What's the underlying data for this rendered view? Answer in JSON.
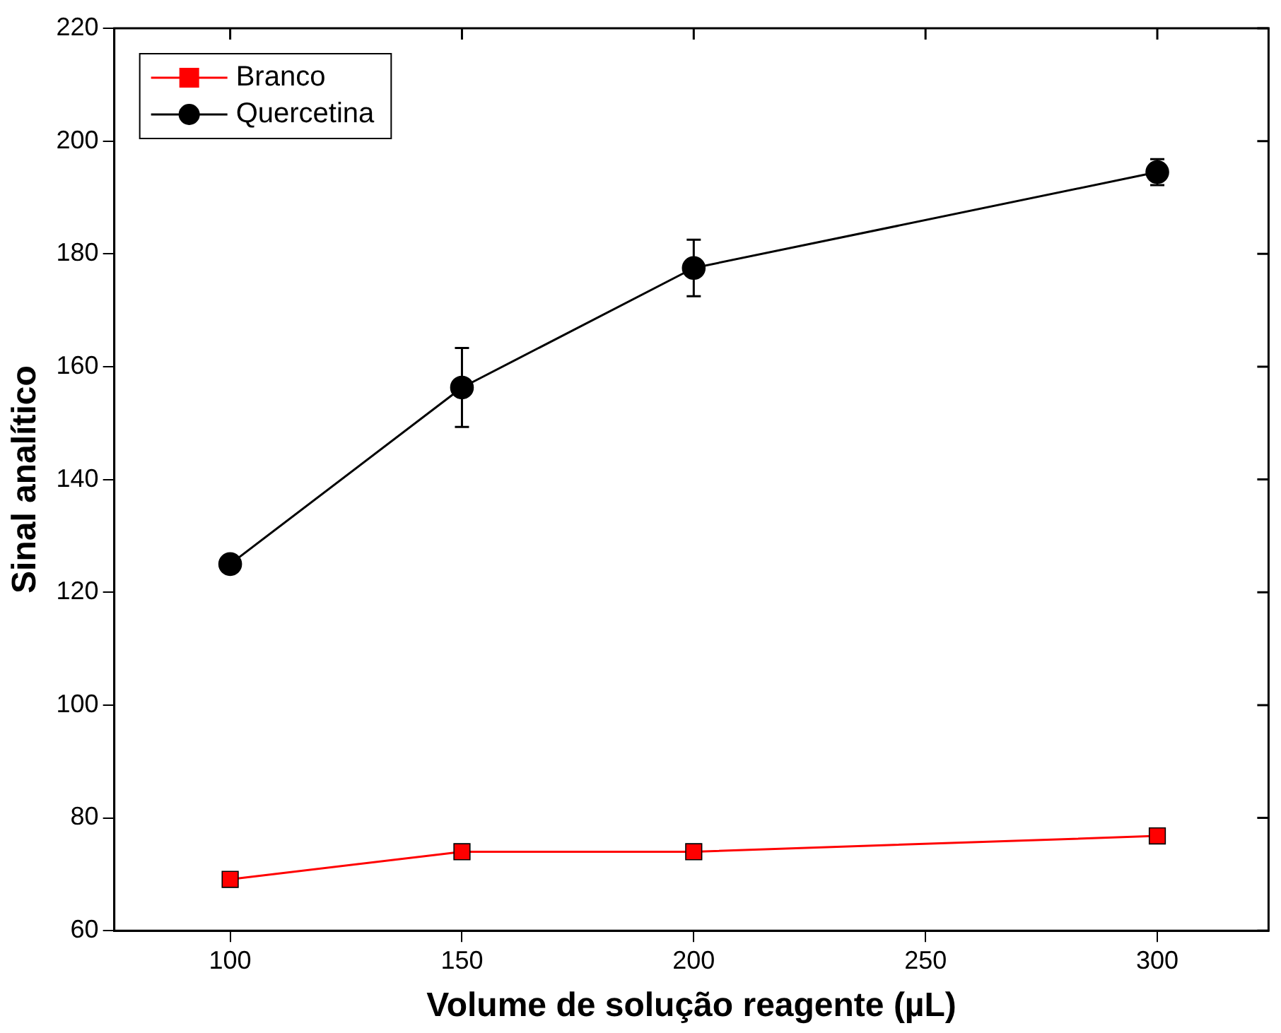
{
  "chart_data": {
    "type": "line",
    "xlabel": "Volume de solução reagente (µL)",
    "ylabel": "Sinal analítico",
    "x": [
      100,
      150,
      200,
      300
    ],
    "series": [
      {
        "name": "Branco",
        "color": "#ff0000",
        "marker": "square",
        "values": [
          69.1,
          74,
          74,
          76.8
        ]
      },
      {
        "name": "Quercetina",
        "color": "#000000",
        "marker": "circle",
        "values": [
          125,
          156.3,
          177.5,
          194.5
        ],
        "errors": [
          null,
          7,
          5,
          2.3
        ]
      }
    ],
    "xlim": [
      75,
      324
    ],
    "xticks": [
      100,
      150,
      200,
      250,
      300
    ],
    "ylim": [
      60,
      220
    ],
    "yticks": [
      60,
      80,
      100,
      120,
      140,
      160,
      180,
      200,
      220
    ],
    "grid": false,
    "legend": "top left",
    "line_style": "solid"
  }
}
